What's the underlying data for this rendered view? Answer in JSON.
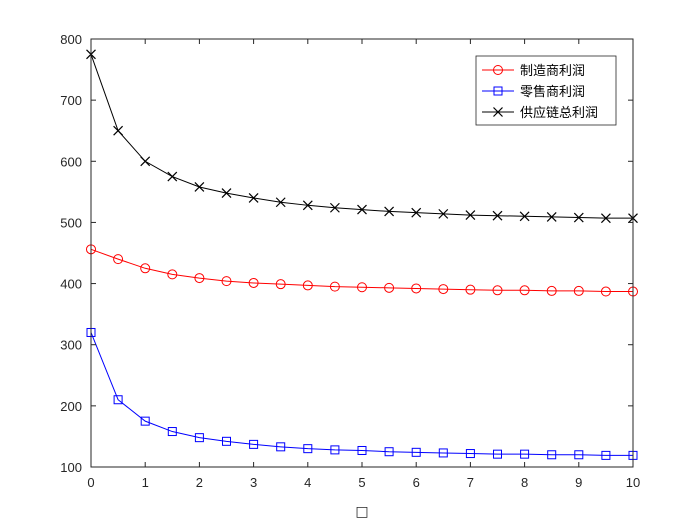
{
  "chart_data": {
    "type": "line",
    "title": "",
    "xlabel": "□",
    "ylabel": "",
    "xlim": [
      0,
      10
    ],
    "ylim": [
      100,
      800
    ],
    "xticks": [
      0,
      1,
      2,
      3,
      4,
      5,
      6,
      7,
      8,
      9,
      10
    ],
    "yticks": [
      100,
      200,
      300,
      400,
      500,
      600,
      700,
      800
    ],
    "grid": false,
    "legend_position": "top-right",
    "x": [
      0,
      0.5,
      1,
      1.5,
      2,
      2.5,
      3,
      3.5,
      4,
      4.5,
      5,
      5.5,
      6,
      6.5,
      7,
      7.5,
      8,
      8.5,
      9,
      9.5,
      10
    ],
    "series": [
      {
        "name": "制造商利润",
        "color": "#ff0000",
        "marker": "circle",
        "values": [
          456,
          440,
          425,
          415,
          409,
          404,
          401,
          399,
          397,
          395,
          394,
          393,
          392,
          391,
          390,
          389,
          389,
          388,
          388,
          387,
          387
        ]
      },
      {
        "name": "零售商利润",
        "color": "#0000ff",
        "marker": "square",
        "values": [
          320,
          210,
          175,
          158,
          148,
          142,
          137,
          133,
          130,
          128,
          127,
          125,
          124,
          123,
          122,
          121,
          121,
          120,
          120,
          119,
          119
        ]
      },
      {
        "name": "供应链总利润",
        "color": "#000000",
        "marker": "x",
        "values": [
          775,
          650,
          600,
          575,
          558,
          548,
          540,
          533,
          528,
          524,
          521,
          518,
          516,
          514,
          512,
          511,
          510,
          509,
          508,
          507,
          507
        ]
      }
    ]
  }
}
